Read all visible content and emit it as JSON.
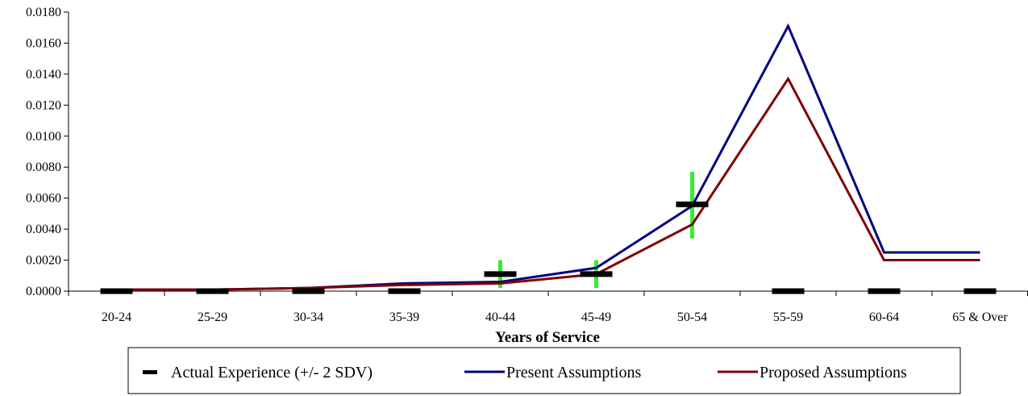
{
  "chart_data": {
    "type": "line",
    "xlabel": "Years of Service",
    "ylabel": "",
    "ylim": [
      0,
      0.018
    ],
    "y_ticks": [
      "0.0000",
      "0.0020",
      "0.0040",
      "0.0060",
      "0.0080",
      "0.0100",
      "0.0120",
      "0.0140",
      "0.0160",
      "0.0180"
    ],
    "categories": [
      "20-24",
      "25-29",
      "30-34",
      "35-39",
      "40-44",
      "45-49",
      "50-54",
      "55-59",
      "60-64",
      "65 & Over"
    ],
    "series": [
      {
        "name": "Present Assumptions",
        "color": "#000080",
        "values": [
          0.0001,
          0.0001,
          0.0002,
          0.0005,
          0.0006,
          0.0015,
          0.0055,
          0.0171,
          0.0025,
          0.0025
        ]
      },
      {
        "name": "Proposed Assumptions",
        "color": "#800000",
        "values": [
          0.0001,
          0.0001,
          0.0002,
          0.0004,
          0.0005,
          0.0011,
          0.0043,
          0.0137,
          0.002,
          0.002
        ]
      }
    ],
    "actual_experience": {
      "name": "Actual Experience (+/- 2 SDV)",
      "color": "#000000",
      "values": [
        0.0,
        0.0,
        0.0,
        0.0,
        0.0011,
        0.0011,
        0.0056,
        0.0,
        0.0,
        0.0
      ]
    },
    "error_bars": {
      "color": "#33ee33",
      "ranges": [
        null,
        null,
        null,
        null,
        [
          0.0002,
          0.002
        ],
        [
          0.0002,
          0.002
        ],
        [
          0.0034,
          0.0077
        ],
        null,
        null,
        null
      ]
    },
    "grid": false,
    "legend_position": "bottom"
  }
}
